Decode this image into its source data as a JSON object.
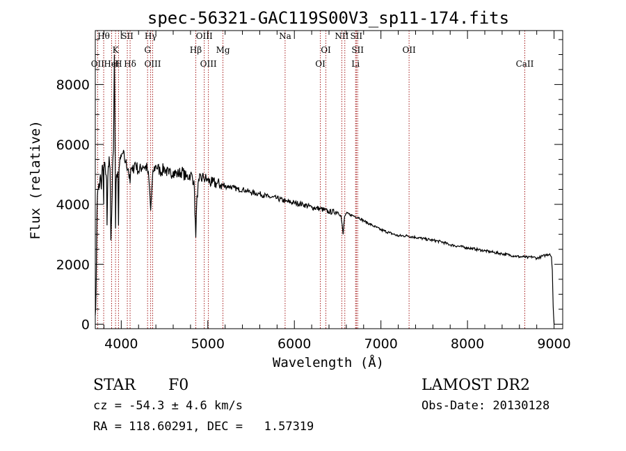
{
  "chart_data": {
    "type": "line",
    "title": "spec-56321-GAC119S00V3_sp11-174.fits",
    "xlabel": "Wavelength (Å)",
    "ylabel": "Flux (relative)",
    "xlim": [
      3700,
      9100
    ],
    "ylim": [
      -150,
      9800
    ],
    "xticks": [
      4000,
      5000,
      6000,
      7000,
      8000,
      9000
    ],
    "xtick_labels": [
      "4000",
      "5000",
      "6000",
      "7000",
      "8000",
      "9000"
    ],
    "yticks": [
      0,
      2000,
      4000,
      6000,
      8000
    ],
    "ytick_labels": [
      "0",
      "2000",
      "4000",
      "6000",
      "8000"
    ],
    "grid": false,
    "series": [
      {
        "x": [
          3700,
          3710,
          3720,
          3725,
          3730,
          3740,
          3750,
          3760,
          3770,
          3780,
          3790,
          3797,
          3800,
          3810,
          3820,
          3830,
          3836,
          3845,
          3860,
          3870,
          3880,
          3889,
          3900,
          3910,
          3920,
          3930,
          3934,
          3940,
          3950,
          3960,
          3968,
          3975,
          3990,
          4000,
          4020,
          4050,
          4080,
          4102,
          4110,
          4130,
          4160,
          4200,
          4250,
          4300,
          4320,
          4340,
          4355,
          4370,
          4400,
          4450,
          4500,
          4550,
          4600,
          4650,
          4700,
          4750,
          4800,
          4840,
          4861,
          4875,
          4900,
          4950,
          5000,
          5050,
          5100,
          5150,
          5200,
          5250,
          5300,
          5350,
          5400,
          5450,
          5500,
          5600,
          5700,
          5800,
          5900,
          6000,
          6100,
          6200,
          6300,
          6400,
          6500,
          6540,
          6563,
          6580,
          6600,
          6650,
          6700,
          6750,
          6800,
          6900,
          7000,
          7100,
          7200,
          7300,
          7400,
          7500,
          7600,
          7700,
          7800,
          7900,
          8000,
          8100,
          8200,
          8300,
          8400,
          8500,
          8600,
          8650,
          8700,
          8750,
          8800,
          8850,
          8900,
          8950,
          8970,
          8980,
          8990,
          9000
        ],
        "y": [
          300,
          1200,
          3800,
          4300,
          4500,
          4700,
          4600,
          5000,
          4500,
          5300,
          5100,
          4000,
          5200,
          5400,
          5000,
          4800,
          3300,
          4900,
          5600,
          5200,
          2800,
          3600,
          5300,
          5800,
          9000,
          5500,
          3200,
          4700,
          5000,
          5100,
          3300,
          5200,
          5500,
          5600,
          5700,
          5400,
          5200,
          4700,
          5200,
          5100,
          5400,
          5100,
          5300,
          5200,
          4800,
          3800,
          4600,
          5100,
          5300,
          5100,
          5200,
          5000,
          5100,
          5000,
          5100,
          4900,
          5000,
          4800,
          2900,
          4300,
          4800,
          4900,
          4800,
          4700,
          4700,
          4650,
          4600,
          4600,
          4550,
          4500,
          4500,
          4450,
          4400,
          4350,
          4250,
          4200,
          4100,
          4050,
          4000,
          3900,
          3850,
          3750,
          3750,
          3600,
          3000,
          3600,
          3700,
          3650,
          3600,
          3550,
          3450,
          3300,
          3150,
          3050,
          2950,
          2950,
          2900,
          2850,
          2800,
          2750,
          2650,
          2600,
          2550,
          2500,
          2450,
          2400,
          2350,
          2300,
          2250,
          2250,
          2220,
          2250,
          2200,
          2250,
          2300,
          2350,
          2250,
          1800,
          600,
          0
        ]
      }
    ],
    "spectral_lines": [
      {
        "wave": 3727,
        "label": "OII",
        "row": 3
      },
      {
        "wave": 3797,
        "label": "Hθ",
        "row": 1
      },
      {
        "wave": 3889,
        "label": "HeI",
        "row": 3
      },
      {
        "wave": 3934,
        "label": "K",
        "row": 2
      },
      {
        "wave": 3968,
        "label": "H",
        "row": 0
      },
      {
        "wave": 4070,
        "label": "SII",
        "row": 1
      },
      {
        "wave": 4102,
        "label": "Hδ",
        "row": 3
      },
      {
        "wave": 4304,
        "label": "G",
        "row": 2
      },
      {
        "wave": 4340,
        "label": "Hγ",
        "row": 1
      },
      {
        "wave": 4363,
        "label": "OIII",
        "row": 3
      },
      {
        "wave": 4861,
        "label": "Hβ",
        "row": 2
      },
      {
        "wave": 4959,
        "label": "OIII",
        "row": 1
      },
      {
        "wave": 5007,
        "label": "OIII",
        "row": 3
      },
      {
        "wave": 5175,
        "label": "Mg",
        "row": 2
      },
      {
        "wave": 5893,
        "label": "Na",
        "row": 1
      },
      {
        "wave": 6300,
        "label": "OI",
        "row": 3
      },
      {
        "wave": 6364,
        "label": "OI",
        "row": 2
      },
      {
        "wave": 6548,
        "label": "NII",
        "row": 1
      },
      {
        "wave": 6583,
        "label": "",
        "row": 0
      },
      {
        "wave": 6707,
        "label": "Li",
        "row": 3
      },
      {
        "wave": 6716,
        "label": "SII",
        "row": 1
      },
      {
        "wave": 6731,
        "label": "SII",
        "row": 2
      },
      {
        "wave": 7325,
        "label": "OII",
        "row": 2
      },
      {
        "wave": 8662,
        "label": "CaII",
        "row": 3
      }
    ]
  },
  "info": {
    "object_class": "STAR",
    "subclass": "F0",
    "survey": "LAMOST DR2",
    "cz": "cz = -54.3 ± 4.6 km/s",
    "obs_date": "Obs-Date: 20130128",
    "coords": "RA = 118.60291, DEC =   1.57319"
  },
  "colors": {
    "spectrum": "#000000",
    "line_markers": "#9b0000",
    "axes": "#000000"
  }
}
